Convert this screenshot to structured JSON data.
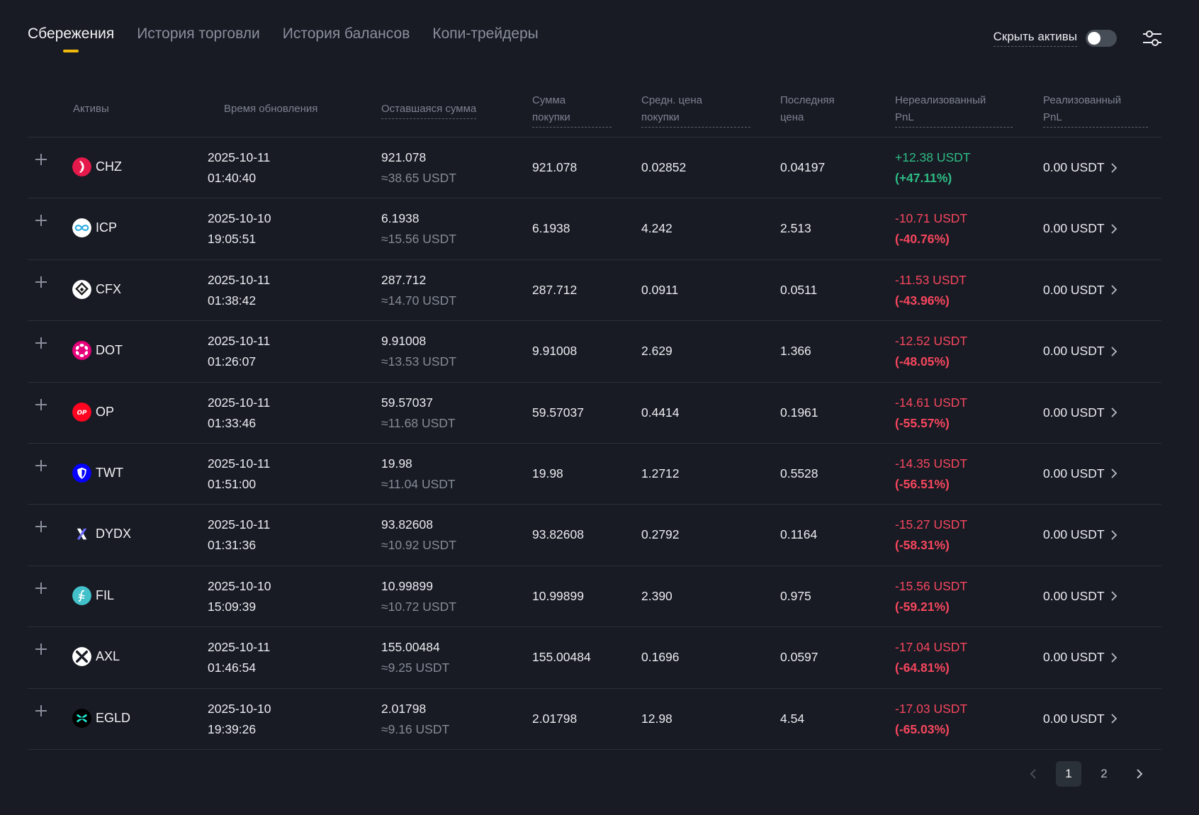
{
  "tabs": [
    {
      "label": "Сбережения",
      "active": true
    },
    {
      "label": "История торговли",
      "active": false
    },
    {
      "label": "История балансов",
      "active": false
    },
    {
      "label": "Копи-трейдеры",
      "active": false
    }
  ],
  "hide_assets_label": "Скрыть активы",
  "columns": {
    "asset": "Активы",
    "updated": "Время обновления",
    "remaining": "Оставшаяся сумма",
    "purchase_1": "Сумма",
    "purchase_2": "покупки",
    "avg_1": "Средн. цена",
    "avg_2": "покупки",
    "last_1": "Последняя",
    "last_2": "цена",
    "unreal_1": "Нереализованный",
    "unreal_2": "PnL",
    "real_1": "Реализованный",
    "real_2": "PnL"
  },
  "rows": [
    {
      "asset": "CHZ",
      "icon": "chz-icon",
      "color": "#e6194b",
      "date": "2025-10-11",
      "time": "01:40:40",
      "remaining": "921.078",
      "remaining_usdt": "≈38.65 USDT",
      "purchase": "921.078",
      "avg": "0.02852",
      "last": "0.04197",
      "pnl": "+12.38 USDT",
      "pnl_pct": "(+47.11%)",
      "positive": true,
      "realized": "0.00 USDT"
    },
    {
      "asset": "ICP",
      "icon": "icp-icon",
      "color": "#ffffff",
      "date": "2025-10-10",
      "time": "19:05:51",
      "remaining": "6.1938",
      "remaining_usdt": "≈15.56 USDT",
      "purchase": "6.1938",
      "avg": "4.242",
      "last": "2.513",
      "pnl": "-10.71 USDT",
      "pnl_pct": "(-40.76%)",
      "positive": false,
      "realized": "0.00 USDT"
    },
    {
      "asset": "CFX",
      "icon": "cfx-icon",
      "color": "#ffffff",
      "date": "2025-10-11",
      "time": "01:38:42",
      "remaining": "287.712",
      "remaining_usdt": "≈14.70 USDT",
      "purchase": "287.712",
      "avg": "0.0911",
      "last": "0.0511",
      "pnl": "-11.53 USDT",
      "pnl_pct": "(-43.96%)",
      "positive": false,
      "realized": "0.00 USDT"
    },
    {
      "asset": "DOT",
      "icon": "dot-icon",
      "color": "#e6007a",
      "date": "2025-10-11",
      "time": "01:26:07",
      "remaining": "9.91008",
      "remaining_usdt": "≈13.53 USDT",
      "purchase": "9.91008",
      "avg": "2.629",
      "last": "1.366",
      "pnl": "-12.52 USDT",
      "pnl_pct": "(-48.05%)",
      "positive": false,
      "realized": "0.00 USDT"
    },
    {
      "asset": "OP",
      "icon": "op-icon",
      "color": "#ff0420",
      "date": "2025-10-11",
      "time": "01:33:46",
      "remaining": "59.57037",
      "remaining_usdt": "≈11.68 USDT",
      "purchase": "59.57037",
      "avg": "0.4414",
      "last": "0.1961",
      "pnl": "-14.61 USDT",
      "pnl_pct": "(-55.57%)",
      "positive": false,
      "realized": "0.00 USDT"
    },
    {
      "asset": "TWT",
      "icon": "twt-icon",
      "color": "#0500ff",
      "date": "2025-10-11",
      "time": "01:51:00",
      "remaining": "19.98",
      "remaining_usdt": "≈11.04 USDT",
      "purchase": "19.98",
      "avg": "1.2712",
      "last": "0.5528",
      "pnl": "-14.35 USDT",
      "pnl_pct": "(-56.51%)",
      "positive": false,
      "realized": "0.00 USDT"
    },
    {
      "asset": "DYDX",
      "icon": "dydx-icon",
      "color": "#181b24",
      "date": "2025-10-11",
      "time": "01:31:36",
      "remaining": "93.82608",
      "remaining_usdt": "≈10.92 USDT",
      "purchase": "93.82608",
      "avg": "0.2792",
      "last": "0.1164",
      "pnl": "-15.27 USDT",
      "pnl_pct": "(-58.31%)",
      "positive": false,
      "realized": "0.00 USDT"
    },
    {
      "asset": "FIL",
      "icon": "fil-icon",
      "color": "#42c1ca",
      "date": "2025-10-10",
      "time": "15:09:39",
      "remaining": "10.99899",
      "remaining_usdt": "≈10.72 USDT",
      "purchase": "10.99899",
      "avg": "2.390",
      "last": "0.975",
      "pnl": "-15.56 USDT",
      "pnl_pct": "(-59.21%)",
      "positive": false,
      "realized": "0.00 USDT"
    },
    {
      "asset": "AXL",
      "icon": "axl-icon",
      "color": "#ffffff",
      "date": "2025-10-11",
      "time": "01:46:54",
      "remaining": "155.00484",
      "remaining_usdt": "≈9.25 USDT",
      "purchase": "155.00484",
      "avg": "0.1696",
      "last": "0.0597",
      "pnl": "-17.04 USDT",
      "pnl_pct": "(-64.81%)",
      "positive": false,
      "realized": "0.00 USDT"
    },
    {
      "asset": "EGLD",
      "icon": "egld-icon",
      "color": "#000000",
      "date": "2025-10-10",
      "time": "19:39:26",
      "remaining": "2.01798",
      "remaining_usdt": "≈9.16 USDT",
      "purchase": "2.01798",
      "avg": "12.98",
      "last": "4.54",
      "pnl": "-17.03 USDT",
      "pnl_pct": "(-65.03%)",
      "positive": false,
      "realized": "0.00 USDT"
    }
  ],
  "pagination": {
    "pages": [
      "1",
      "2"
    ],
    "current": "1"
  }
}
